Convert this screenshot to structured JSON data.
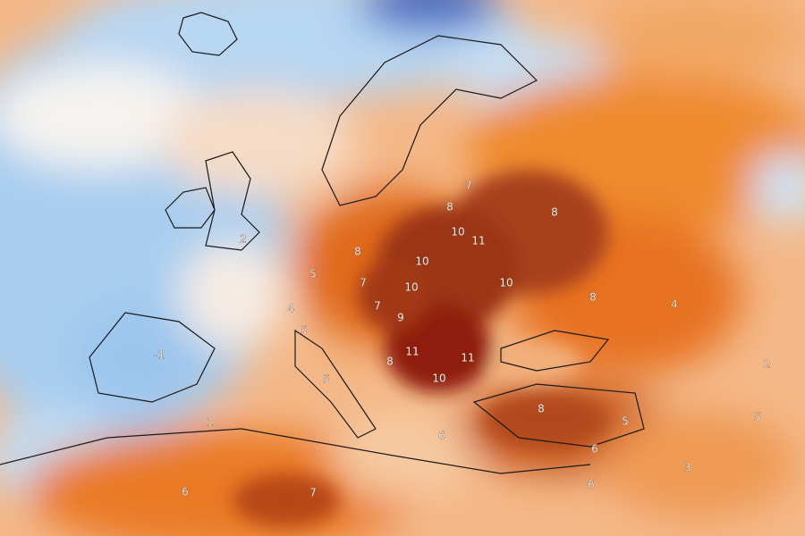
{
  "map": {
    "labels": [
      8,
      8,
      7,
      10,
      11,
      8,
      10,
      10,
      10,
      7,
      8,
      7,
      9,
      8,
      11,
      11,
      10,
      8,
      5,
      5,
      6,
      7,
      6,
      6,
      5,
      -1,
      4,
      3,
      2,
      4,
      5,
      5,
      2,
      1,
      6
    ]
  }
}
